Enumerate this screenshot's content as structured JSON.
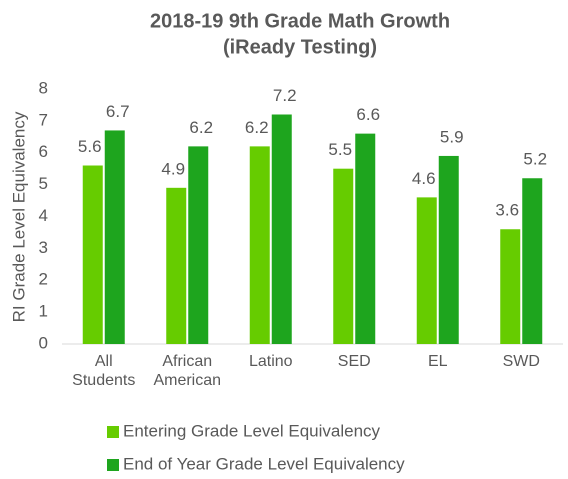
{
  "chart_data": {
    "type": "bar",
    "title": [
      "2018-19 9th Grade Math Growth",
      "(iReady Testing)"
    ],
    "y_label": "RI Grade Level Equivalency",
    "categories": [
      "All Students",
      "African American",
      "Latino",
      "SED",
      "EL",
      "SWD"
    ],
    "series": [
      {
        "name": "Entering Grade Level Equivalency",
        "color": "#66cc00",
        "values": [
          5.6,
          4.9,
          6.2,
          5.5,
          4.6,
          3.6
        ]
      },
      {
        "name": "End of Year Grade Level Equivalency",
        "color": "#1ea51e",
        "values": [
          6.7,
          6.2,
          7.2,
          6.6,
          5.9,
          5.2
        ]
      }
    ],
    "ylim": [
      0,
      8
    ],
    "yticks": [
      0,
      1,
      2,
      3,
      4,
      5,
      6,
      7,
      8
    ],
    "grid": false,
    "legend": "bottom"
  }
}
